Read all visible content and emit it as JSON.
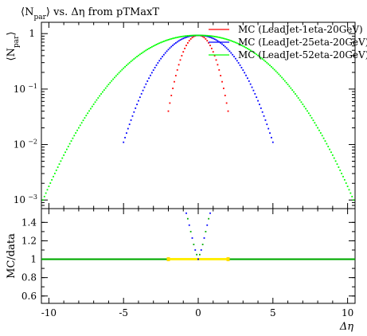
{
  "chart_data": [
    {
      "type": "scatter",
      "title": "⟨N_par⟩ vs. Δη from pTMaxT",
      "title_parts": {
        "lead": "⟨N",
        "sub": "par",
        "tail": "⟩ vs. Δη from pTMaxT"
      },
      "ylabel_parts": {
        "lead": "⟨N",
        "sub": "par",
        "tail": "⟩"
      },
      "xlim": [
        -10.5,
        10.5
      ],
      "ylim": [
        0.0007,
        1.6
      ],
      "yscale": "log",
      "xticks": [
        -10,
        -5,
        0,
        5,
        10
      ],
      "yticks": [
        {
          "value": 1,
          "label": "1"
        },
        {
          "value": 0.1,
          "label": "10",
          "exp": "−1"
        },
        {
          "value": 0.01,
          "label": "10",
          "exp": "−2"
        },
        {
          "value": 0.001,
          "label": "10",
          "exp": "−3"
        }
      ],
      "legend_position": "top-right",
      "series": [
        {
          "name": "MC (LeadJet-1eta-20GeV)",
          "color": "#ff0000",
          "halfwidth": 2,
          "peak": 0.93,
          "edge": 0.04,
          "npoints": 41
        },
        {
          "name": "MC (LeadJet-25eta-20GeV)",
          "color": "#0000ff",
          "halfwidth": 5,
          "peak": 0.93,
          "edge": 0.011,
          "npoints": 101
        },
        {
          "name": "MC (LeadJet-52eta-20GeV)",
          "color": "#00ff00",
          "halfwidth": 10.4,
          "peak": 0.93,
          "edge": 0.001,
          "npoints": 209
        }
      ]
    },
    {
      "type": "scatter",
      "ylabel": "MC/data",
      "xlabel": "Δη",
      "xlim": [
        -10.5,
        10.5
      ],
      "ylim": [
        0.52,
        1.55
      ],
      "xticks": [
        -10,
        -5,
        0,
        5,
        10
      ],
      "yticks": [
        0.6,
        0.8,
        1,
        1.2,
        1.4
      ],
      "reference_line": 1.0,
      "band": {
        "x": [
          -2,
          2
        ],
        "y": 1.0,
        "color": "#ffee00"
      },
      "series": [
        {
          "name": "MC (LeadJet-1eta-20GeV)",
          "color": "#ff0000"
        },
        {
          "name": "MC (LeadJet-25eta-20GeV)",
          "color": "#0000ff"
        },
        {
          "name": "MC (LeadJet-52eta-20GeV)",
          "color": "#00aa00"
        }
      ],
      "ratio_curve": {
        "x_abs": [
          0.0,
          0.1,
          0.2,
          0.3,
          0.4,
          0.5,
          0.6,
          0.7,
          0.8
        ],
        "y": [
          1.0,
          1.05,
          1.1,
          1.16,
          1.23,
          1.3,
          1.37,
          1.44,
          1.5
        ]
      }
    }
  ]
}
